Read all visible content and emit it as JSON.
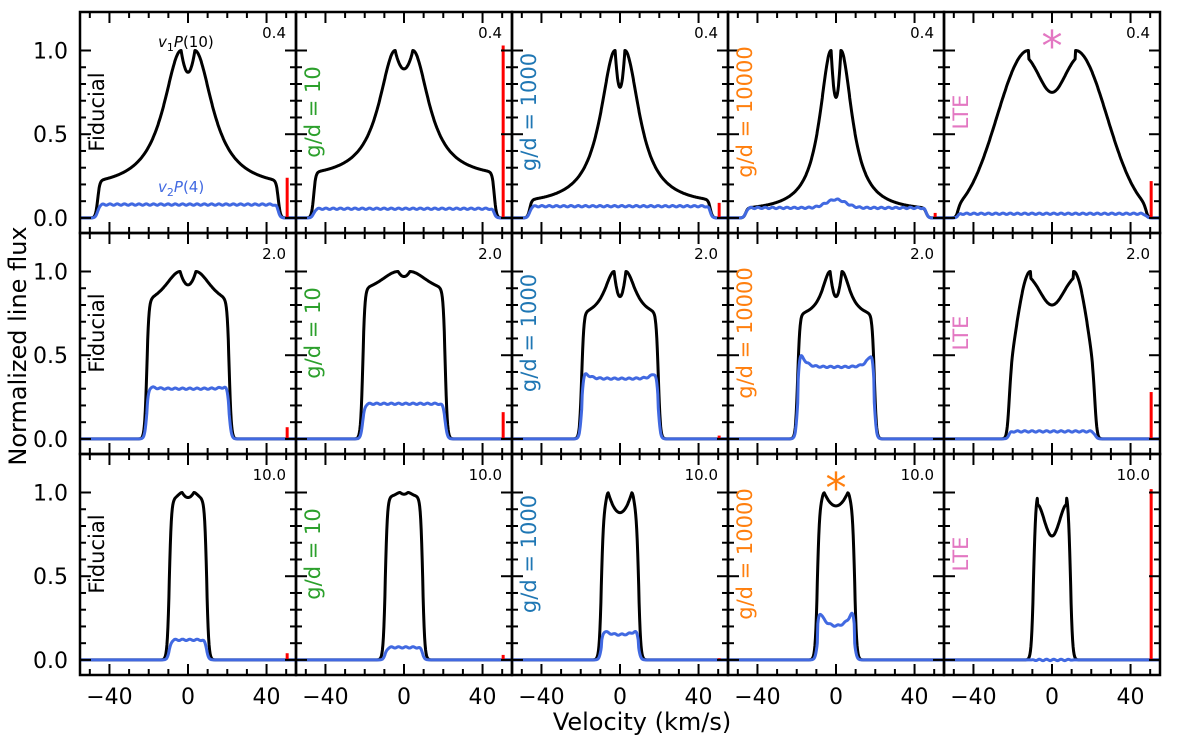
{
  "figure": {
    "ylabel": "Normalized line flux",
    "xlabel": "Velocity (km/s)",
    "line_label_top": "v1P(10)",
    "line_label_bottom": "v2P(4)",
    "line_label_top_parts": {
      "sym": "v",
      "sub": "1",
      "rest": "P(10)"
    },
    "line_label_bottom_parts": {
      "sym": "v",
      "sub": "2",
      "rest": "P(4)"
    },
    "star_symbol": "*"
  },
  "chart_data": {
    "type": "line",
    "x_range": [
      -55,
      55
    ],
    "y_range": [
      -0.09,
      1.23
    ],
    "xticks": [
      -40,
      0,
      40
    ],
    "xtick_labels": [
      "−40",
      "0",
      "40"
    ],
    "yticks": [
      0.0,
      0.5,
      1.0
    ],
    "ytick_labels": [
      "0.0",
      "0.5",
      "1.0"
    ],
    "colors": {
      "v1": "#000000",
      "v2": "#4169e1",
      "bar": "#ff0000"
    },
    "columns": [
      {
        "label": "Fiducial",
        "color": "#000000"
      },
      {
        "label": "g/d = 10",
        "color": "#2ca02c"
      },
      {
        "label": "g/d = 1000",
        "color": "#1f77b4"
      },
      {
        "label": "g/d = 10000",
        "color": "#ff7f0e"
      },
      {
        "label": "LTE",
        "color": "#e377c2"
      }
    ],
    "rows": [
      {
        "label": "0.4"
      },
      {
        "label": "2.0"
      },
      {
        "label": "10.0"
      }
    ],
    "panels": [
      [
        {
          "v1": {
            "shape": "wings",
            "edge": 46,
            "base": 0.17,
            "peak": 1.0,
            "peak_sep": 3.5,
            "dip": 0.87,
            "w": 11
          },
          "v2": {
            "edge": 46,
            "level": 0.08
          },
          "bar": 0.24
        },
        {
          "v1": {
            "shape": "wings",
            "edge": 46,
            "base": 0.23,
            "peak": 1.0,
            "peak_sep": 4.5,
            "dip": 0.89,
            "w": 10
          },
          "v2": {
            "edge": 46,
            "level": 0.055
          },
          "bar": 1.03
        },
        {
          "v1": {
            "shape": "wings",
            "edge": 46,
            "base": 0.07,
            "peak": 1.0,
            "peak_sep": 2.5,
            "dip": 0.78,
            "w": 9
          },
          "v2": {
            "edge": 46,
            "level": 0.07
          },
          "bar": 0.09
        },
        {
          "v1": {
            "shape": "wings",
            "edge": 46,
            "base": 0.035,
            "peak": 1.0,
            "peak_sep": 2.5,
            "dip": 0.72,
            "w": 7
          },
          "v2": {
            "edge": 46,
            "level": 0.06,
            "bump": 0.05
          },
          "bar": 0.03
        },
        {
          "v1": {
            "shape": "lte",
            "edge": 48,
            "peak": 1.0,
            "peak_sep": 12,
            "dip": 0.75,
            "sig": 16
          },
          "v2": {
            "edge": 48,
            "level": 0.025
          },
          "bar": 0.22
        }
      ],
      [
        {
          "v1": {
            "shape": "box",
            "edge": 21,
            "base": 0.77,
            "peak": 1.0,
            "peak_sep": 4,
            "dip": 0.92,
            "w": 10
          },
          "v2": {
            "edge": 21,
            "level": 0.3,
            "horn": 0.03
          },
          "bar": 0.07
        },
        {
          "v1": {
            "shape": "box",
            "edge": 21,
            "base": 0.85,
            "peak": 1.0,
            "peak_sep": 3,
            "dip": 0.97,
            "w": 12
          },
          "v2": {
            "edge": 21,
            "level": 0.21
          },
          "bar": 0.16
        },
        {
          "v1": {
            "shape": "box",
            "edge": 19.5,
            "base": 0.72,
            "peak": 1.0,
            "peak_sep": 3,
            "dip": 0.85,
            "w": 6
          },
          "v2": {
            "edge": 19.5,
            "level": 0.36,
            "horn": 0.08
          },
          "bar": 0.02
        },
        {
          "v1": {
            "shape": "box",
            "edge": 19.5,
            "base": 0.72,
            "peak": 1.0,
            "peak_sep": 3,
            "dip": 0.85,
            "w": 5
          },
          "v2": {
            "edge": 19.5,
            "level": 0.43,
            "horn": 0.17
          },
          "bar": 0.005
        },
        {
          "v1": {
            "shape": "lte",
            "edge": 22,
            "peak": 1.0,
            "peak_sep": 11,
            "dip": 0.8,
            "sig": 8
          },
          "v2": {
            "edge": 22,
            "level": 0.045
          },
          "bar": 0.28
        }
      ],
      [
        {
          "v1": {
            "shape": "box",
            "edge": 9.5,
            "base": 0.95,
            "peak": 1.0,
            "peak_sep": 3,
            "dip": 0.97,
            "w": 3
          },
          "v2": {
            "edge": 9.5,
            "level": 0.12
          },
          "bar": 0.04
        },
        {
          "v1": {
            "shape": "box",
            "edge": 9.5,
            "base": 0.97,
            "peak": 1.0,
            "peak_sep": 2,
            "dip": 0.99,
            "w": 3
          },
          "v2": {
            "edge": 9.5,
            "level": 0.075
          },
          "bar": 0.03
        },
        {
          "v1": {
            "shape": "box",
            "edge": 9.5,
            "base": 0.85,
            "peak": 1.0,
            "peak_sep": 6,
            "dip": 0.88,
            "w": 2
          },
          "v2": {
            "edge": 9.5,
            "level": 0.15,
            "horn": 0.05
          },
          "bar": 0.01
        },
        {
          "v1": {
            "shape": "box",
            "edge": 9.5,
            "base": 0.9,
            "peak": 1.0,
            "peak_sep": 6,
            "dip": 0.92,
            "w": 2
          },
          "v2": {
            "edge": 9.5,
            "level": 0.2,
            "horn": 0.17
          },
          "bar": 0.005
        },
        {
          "v1": {
            "shape": "lte",
            "edge": 9.5,
            "peak": 1.0,
            "peak_sep": 7.5,
            "dip": 0.74,
            "sig": 4
          },
          "v2": {
            "edge": 9.5,
            "level": 0.0
          },
          "bar": 1.02
        }
      ]
    ],
    "stars": [
      {
        "row": 0,
        "col": 4,
        "x": 0,
        "y": 1.06,
        "color": "#e377c2"
      },
      {
        "row": 2,
        "col": 3,
        "x": 0,
        "y": 1.06,
        "color": "#ff7f0e"
      }
    ]
  }
}
